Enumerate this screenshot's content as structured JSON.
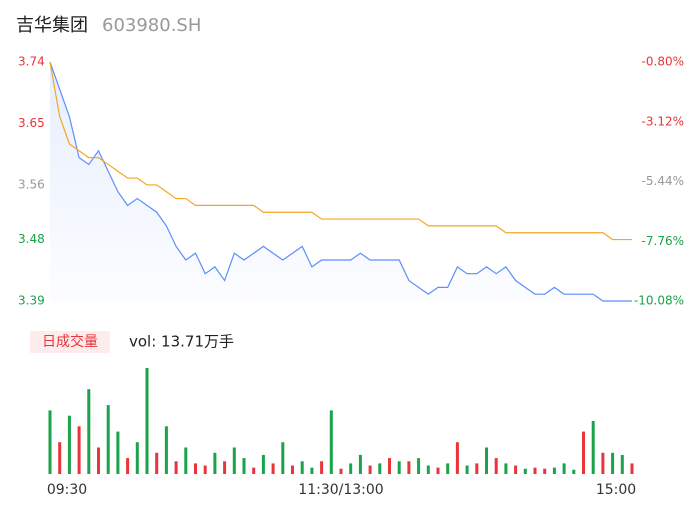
{
  "header": {
    "name": "吉华集团",
    "code": "603980.SH"
  },
  "chart_data": [
    {
      "type": "line",
      "x": [
        0,
        4,
        8,
        12,
        16,
        20,
        24,
        28,
        32,
        36,
        40,
        44,
        48,
        52,
        56,
        60,
        64,
        68,
        72,
        76,
        80,
        84,
        88,
        92,
        96,
        100,
        104,
        108,
        112,
        116,
        120,
        124,
        128,
        132,
        136,
        140,
        144,
        148,
        152,
        156,
        160,
        164,
        168,
        172,
        176,
        180,
        184,
        188,
        192,
        196,
        200,
        204,
        208,
        212,
        216,
        220,
        224,
        228,
        232,
        236,
        240
      ],
      "xlim": [
        0,
        240
      ],
      "xticks": [
        {
          "value": 0,
          "label": "09:30"
        },
        {
          "value": 120,
          "label": "11:30/13:00"
        },
        {
          "value": 240,
          "label": "15:00"
        }
      ],
      "ylim": [
        3.39,
        3.74
      ],
      "yticks": [
        3.74,
        3.65,
        3.56,
        3.48,
        3.39
      ],
      "y2lim": [
        -10.08,
        -0.8
      ],
      "y2ticks": [
        {
          "value": -0.8,
          "label": "-0.80%"
        },
        {
          "value": -3.12,
          "label": "-3.12%"
        },
        {
          "value": -5.44,
          "label": "-5.44%"
        },
        {
          "value": -7.76,
          "label": "-7.76%"
        },
        {
          "value": -10.08,
          "label": "-10.08%"
        }
      ],
      "series": [
        {
          "color": "#5b8ff9",
          "area": true,
          "values": [
            3.74,
            3.7,
            3.66,
            3.6,
            3.59,
            3.61,
            3.58,
            3.55,
            3.53,
            3.54,
            3.53,
            3.52,
            3.5,
            3.47,
            3.45,
            3.46,
            3.43,
            3.44,
            3.42,
            3.46,
            3.45,
            3.46,
            3.47,
            3.46,
            3.45,
            3.46,
            3.47,
            3.44,
            3.45,
            3.45,
            3.45,
            3.45,
            3.46,
            3.45,
            3.45,
            3.45,
            3.45,
            3.42,
            3.41,
            3.4,
            3.41,
            3.41,
            3.44,
            3.43,
            3.43,
            3.44,
            3.43,
            3.44,
            3.42,
            3.41,
            3.4,
            3.4,
            3.41,
            3.4,
            3.4,
            3.4,
            3.4,
            3.39,
            3.39,
            3.39,
            3.39
          ]
        },
        {
          "color": "#f5a623",
          "values": [
            3.74,
            3.66,
            3.62,
            3.61,
            3.6,
            3.6,
            3.59,
            3.58,
            3.57,
            3.57,
            3.56,
            3.56,
            3.55,
            3.54,
            3.54,
            3.53,
            3.53,
            3.53,
            3.53,
            3.53,
            3.53,
            3.53,
            3.52,
            3.52,
            3.52,
            3.52,
            3.52,
            3.52,
            3.51,
            3.51,
            3.51,
            3.51,
            3.51,
            3.51,
            3.51,
            3.51,
            3.51,
            3.51,
            3.51,
            3.5,
            3.5,
            3.5,
            3.5,
            3.5,
            3.5,
            3.5,
            3.5,
            3.49,
            3.49,
            3.49,
            3.49,
            3.49,
            3.49,
            3.49,
            3.49,
            3.49,
            3.49,
            3.49,
            3.48,
            3.48,
            3.48
          ]
        }
      ]
    },
    {
      "type": "bar",
      "label": "日成交量",
      "summary": "vol: 13.71万手",
      "ylim": [
        0,
        100
      ],
      "series": [
        {
          "color": "#e8343a",
          "values": [
            null,
            30,
            null,
            45,
            null,
            25,
            null,
            null,
            15,
            null,
            null,
            20,
            null,
            12,
            null,
            10,
            8,
            null,
            12,
            null,
            null,
            6,
            null,
            10,
            null,
            8,
            null,
            null,
            12,
            null,
            5,
            null,
            null,
            8,
            null,
            15,
            null,
            12,
            null,
            null,
            6,
            null,
            30,
            null,
            10,
            null,
            15,
            null,
            8,
            null,
            6,
            5,
            null,
            null,
            null,
            40,
            null,
            20,
            null,
            null,
            10
          ]
        },
        {
          "color": "#1aa34a",
          "values": [
            60,
            null,
            55,
            null,
            80,
            null,
            65,
            40,
            null,
            30,
            100,
            null,
            45,
            null,
            25,
            null,
            null,
            20,
            null,
            25,
            15,
            null,
            18,
            null,
            30,
            null,
            12,
            6,
            null,
            60,
            null,
            10,
            18,
            null,
            10,
            null,
            12,
            null,
            15,
            8,
            null,
            10,
            null,
            8,
            null,
            25,
            null,
            10,
            null,
            5,
            null,
            null,
            6,
            10,
            4,
            null,
            50,
            null,
            20,
            18,
            null
          ]
        }
      ]
    }
  ]
}
